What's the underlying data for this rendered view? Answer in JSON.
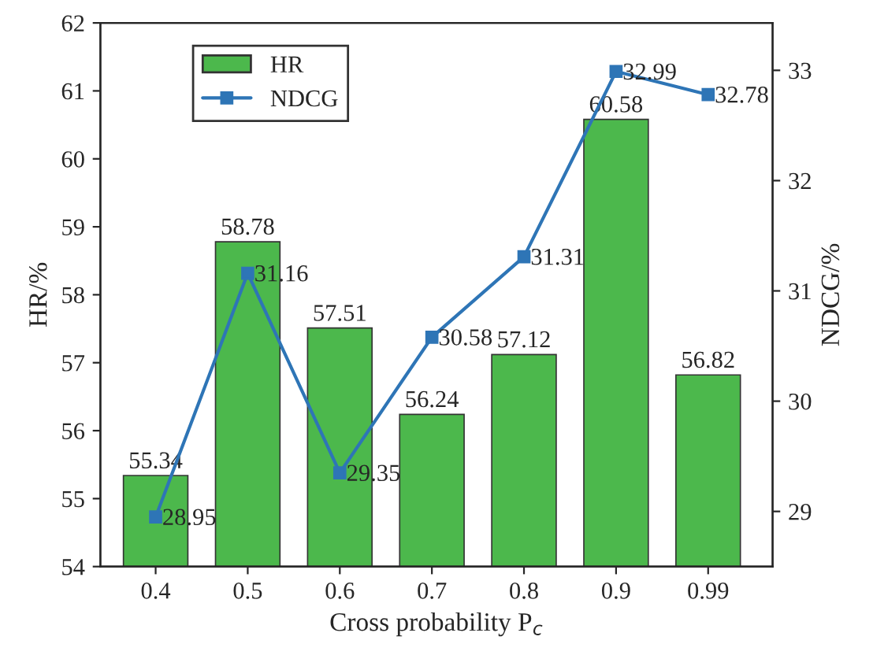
{
  "chart_data": {
    "type": "bar",
    "xlabel": "Cross probability P$_{c}$",
    "ylabel": "HR/%",
    "y2label": "NDCG/%",
    "categories": [
      "0.4",
      "0.5",
      "0.6",
      "0.7",
      "0.8",
      "0.9",
      "0.99"
    ],
    "series": [
      {
        "name": "HR",
        "color": "#4cb84c",
        "values": [
          55.34,
          58.78,
          57.51,
          56.24,
          57.12,
          60.58,
          56.82
        ]
      },
      {
        "name": "NDCG",
        "type": "line",
        "axis": "y2",
        "color": "#2e75b6",
        "marker": "square",
        "values": [
          28.95,
          31.16,
          29.35,
          30.58,
          31.31,
          32.99,
          32.78
        ]
      }
    ],
    "ylim": [
      54,
      62
    ],
    "yticks": [
      54,
      55,
      56,
      57,
      58,
      59,
      60,
      61,
      62
    ],
    "y2lim": [
      28.5,
      33.43
    ],
    "y2ticks": [
      29,
      30,
      31,
      32,
      33
    ],
    "data_labels": true,
    "legend": "top left",
    "grid": false
  }
}
